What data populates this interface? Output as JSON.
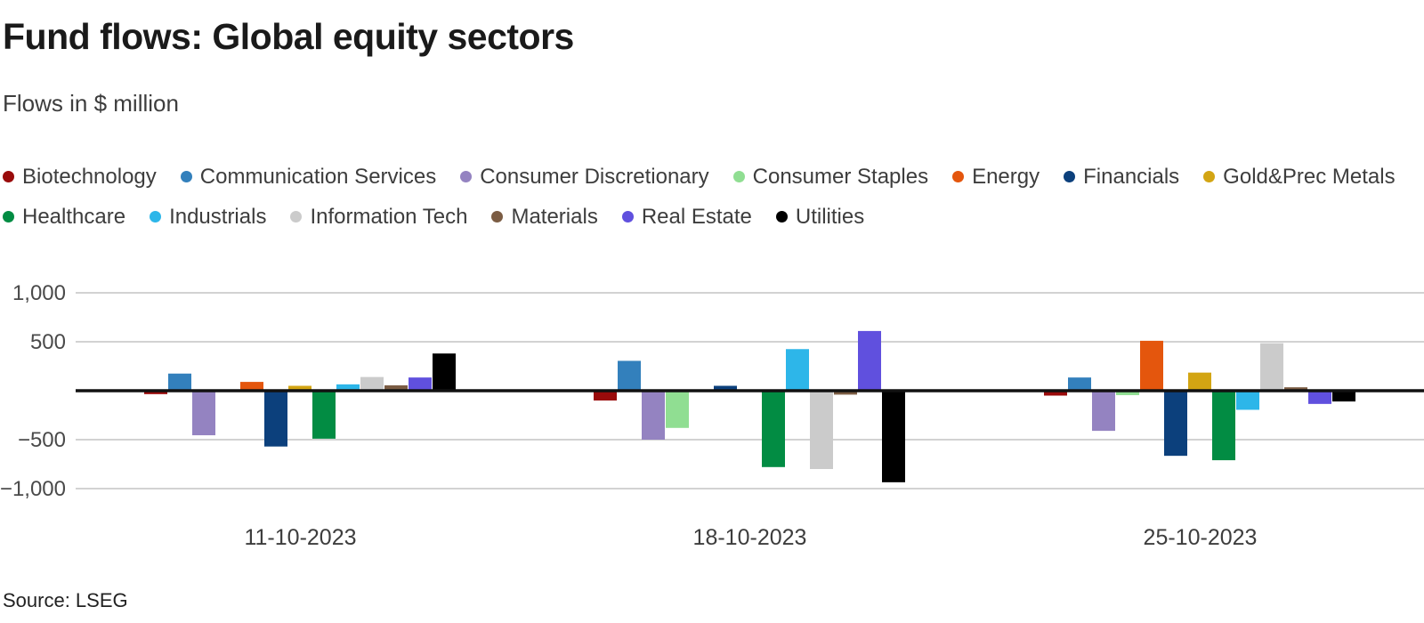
{
  "header": {
    "title": "Fund flows: Global equity sectors",
    "subtitle": "Flows in $ million"
  },
  "source": "Source: LSEG",
  "accent_colors": {
    "text_dark": "#1a1a1a",
    "text_gray": "#3d3d3d",
    "gridline": "#d2d2d2",
    "zero_line": "#111111"
  },
  "legend": {
    "rows": [
      [
        "Biotechnology",
        "Communication Services",
        "Consumer Discretionary",
        "Consumer Staples",
        "Energy",
        "Financials",
        "Gold&Prec Metals"
      ],
      [
        "Healthcare",
        "Industrials",
        "Information Tech",
        "Materials",
        "Real Estate",
        "Utilities"
      ]
    ]
  },
  "chart_data": {
    "type": "bar",
    "title": "Fund flows: Global equity sectors",
    "xlabel": "",
    "ylabel": "Flows in $ million",
    "grid": true,
    "legend_position": "top",
    "ylim": [
      -1000,
      1000
    ],
    "yticks": [
      1000,
      500,
      -500,
      -1000
    ],
    "ytick_labels": [
      "1,000",
      "500",
      "−500",
      "−1,000"
    ],
    "categories": [
      "11-10-2023",
      "18-10-2023",
      "25-10-2023"
    ],
    "series": [
      {
        "name": "Biotechnology",
        "color": "#990b0b",
        "values": [
          -35,
          -100,
          -50
        ]
      },
      {
        "name": "Communication Services",
        "color": "#3380bc",
        "values": [
          175,
          305,
          135
        ]
      },
      {
        "name": "Consumer Discretionary",
        "color": "#9483c1",
        "values": [
          -455,
          -500,
          -410
        ]
      },
      {
        "name": "Consumer Staples",
        "color": "#90de92",
        "values": [
          0,
          -380,
          -45
        ]
      },
      {
        "name": "Energy",
        "color": "#e4560d",
        "values": [
          90,
          0,
          510
        ]
      },
      {
        "name": "Financials",
        "color": "#0c407c",
        "values": [
          -570,
          50,
          -665
        ]
      },
      {
        "name": "Gold&Prec Metals",
        "color": "#d3a513",
        "values": [
          50,
          0,
          185
        ]
      },
      {
        "name": "Healthcare",
        "color": "#028c43",
        "values": [
          -490,
          -780,
          -710
        ]
      },
      {
        "name": "Industrials",
        "color": "#2db6e9",
        "values": [
          65,
          425,
          -195
        ]
      },
      {
        "name": "Information Tech",
        "color": "#cbcbcb",
        "values": [
          140,
          -800,
          485
        ]
      },
      {
        "name": "Materials",
        "color": "#7b5c43",
        "values": [
          55,
          -40,
          35
        ]
      },
      {
        "name": "Real Estate",
        "color": "#6050de",
        "values": [
          135,
          610,
          -135
        ]
      },
      {
        "name": "Utilities",
        "color": "#000000",
        "values": [
          380,
          -935,
          -110
        ]
      }
    ]
  }
}
